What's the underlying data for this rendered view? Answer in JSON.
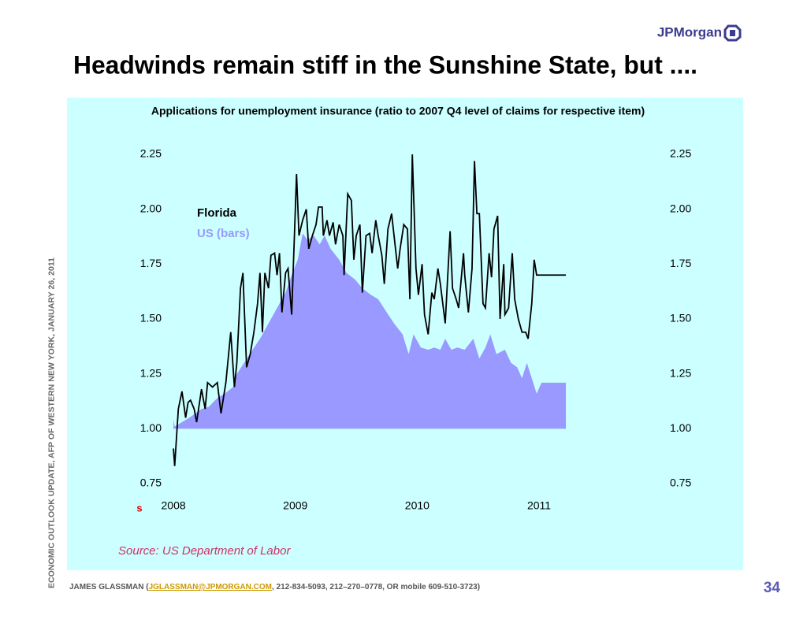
{
  "header": {
    "logo": "JPMorgan",
    "title": "Headwinds remain stiff in the Sunshine State, but ...."
  },
  "sidebar": "ECONOMIC OUTLOOK UPDATE, AFP OF WESTERN NEW YORK, JANUARY 26, 2011",
  "footer": {
    "before": "JAMES GLASSMAN (",
    "email": "JGLASSMAN@JPMORGAN.COM",
    "after": ", 212-834-5093, 212–270–0778, OR mobile 609-510-3723)"
  },
  "page_number": "34",
  "chart_data": {
    "type": "line",
    "title": "Applications for unemployment insurance (ratio to 2007 Q4 level of claims for respective item)",
    "annotation": "s",
    "source": "Source: US Department of Labor",
    "xlim": [
      2007.87,
      2011.75
    ],
    "xticks": [
      2008,
      2009,
      2010,
      2011
    ],
    "ylim": [
      0.75,
      2.25
    ],
    "yticks": [
      0.75,
      {
        "value": 1,
        "label": "1.00"
      },
      1.25,
      {
        "value": 1.5,
        "label": "1.50"
      },
      1.75,
      {
        "value": 2,
        "label": "2.00"
      },
      2.25
    ],
    "y2lim": [
      0.75,
      2.25
    ],
    "y2ticks": [
      0.75,
      {
        "value": 1,
        "label": "1.00"
      },
      1.25,
      {
        "value": 1.5,
        "label": "1.50"
      },
      1.75,
      {
        "value": 2,
        "label": "2.00"
      },
      2.25
    ],
    "series": [
      {
        "name": "Florida",
        "type": "line",
        "color": "#000000",
        "x": [
          2008.0,
          2008.01,
          2008.04,
          2008.07,
          2008.1,
          2008.12,
          2008.14,
          2008.17,
          2008.19,
          2008.23,
          2008.26,
          2008.28,
          2008.32,
          2008.36,
          2008.39,
          2008.43,
          2008.47,
          2008.5,
          2008.52,
          2008.55,
          2008.57,
          2008.6,
          2008.63,
          2008.66,
          2008.69,
          2008.71,
          2008.73,
          2008.75,
          2008.78,
          2008.8,
          2008.83,
          2008.85,
          2008.87,
          2008.89,
          2008.92,
          2008.94,
          2008.97,
          2009.01,
          2009.03,
          2009.06,
          2009.09,
          2009.11,
          2009.14,
          2009.17,
          2009.19,
          2009.22,
          2009.23,
          2009.26,
          2009.28,
          2009.31,
          2009.33,
          2009.36,
          2009.39,
          2009.4,
          2009.43,
          2009.46,
          2009.48,
          2009.5,
          2009.53,
          2009.55,
          2009.58,
          2009.61,
          2009.63,
          2009.66,
          2009.68,
          2009.71,
          2009.73,
          2009.76,
          2009.79,
          2009.81,
          2009.84,
          2009.86,
          2009.89,
          2009.92,
          2009.94,
          2009.96,
          2009.99,
          2010.01,
          2010.04,
          2010.06,
          2010.09,
          2010.12,
          2010.14,
          2010.17,
          2010.19,
          2010.23,
          2010.27,
          2010.29,
          2010.32,
          2010.34,
          2010.38,
          2010.39,
          2010.42,
          2010.45,
          2010.47,
          2010.49,
          2010.51,
          2010.54,
          2010.56,
          2010.59,
          2010.61,
          2010.63,
          2010.66,
          2010.68,
          2010.71,
          2010.72,
          2010.75,
          2010.78,
          2010.8,
          2010.83,
          2010.86,
          2010.89,
          2010.91,
          2010.94,
          2010.96,
          2010.98,
          2011.22
        ],
        "values": [
          0.91,
          0.83,
          1.09,
          1.17,
          1.05,
          1.12,
          1.13,
          1.09,
          1.03,
          1.18,
          1.09,
          1.21,
          1.19,
          1.21,
          1.07,
          1.21,
          1.44,
          1.19,
          1.3,
          1.64,
          1.71,
          1.28,
          1.34,
          1.44,
          1.57,
          1.71,
          1.44,
          1.71,
          1.64,
          1.79,
          1.8,
          1.7,
          1.8,
          1.53,
          1.71,
          1.73,
          1.52,
          2.16,
          1.88,
          1.95,
          2.0,
          1.82,
          1.88,
          1.93,
          2.01,
          2.01,
          1.88,
          1.95,
          1.88,
          1.94,
          1.84,
          1.93,
          1.88,
          1.7,
          2.07,
          2.04,
          1.77,
          1.88,
          1.93,
          1.62,
          1.88,
          1.89,
          1.8,
          1.95,
          1.88,
          1.79,
          1.66,
          1.91,
          1.98,
          1.88,
          1.73,
          1.82,
          1.93,
          1.91,
          1.59,
          2.25,
          1.73,
          1.61,
          1.75,
          1.52,
          1.43,
          1.62,
          1.59,
          1.73,
          1.66,
          1.48,
          1.9,
          1.64,
          1.59,
          1.55,
          1.8,
          1.7,
          1.53,
          1.73,
          2.22,
          1.98,
          1.98,
          1.57,
          1.55,
          1.8,
          1.69,
          1.91,
          1.97,
          1.5,
          1.75,
          1.52,
          1.55,
          1.8,
          1.59,
          1.5,
          1.44,
          1.44,
          1.41,
          1.57,
          1.77,
          1.7,
          1.7
        ]
      },
      {
        "name": "US (bars)",
        "type": "area",
        "color": "#9999ff",
        "base": 1,
        "x": [
          2008.0,
          2008.01,
          2008.13,
          2008.23,
          2008.29,
          2008.36,
          2008.42,
          2008.49,
          2008.52,
          2008.58,
          2008.65,
          2008.71,
          2008.78,
          2008.83,
          2008.87,
          2008.92,
          2008.97,
          2009.02,
          2009.06,
          2009.1,
          2009.15,
          2009.2,
          2009.24,
          2009.29,
          2009.36,
          2009.42,
          2009.49,
          2009.55,
          2009.62,
          2009.68,
          2009.75,
          2009.81,
          2009.88,
          2009.93,
          2009.97,
          2010.03,
          2010.09,
          2010.14,
          2010.19,
          2010.23,
          2010.28,
          2010.33,
          2010.39,
          2010.46,
          2010.51,
          2010.56,
          2010.6,
          2010.65,
          2010.72,
          2010.77,
          2010.82,
          2010.86,
          2010.9,
          2010.94,
          2010.98,
          2011.02,
          2011.22
        ],
        "values": [
          1.04,
          1.01,
          1.05,
          1.09,
          1.1,
          1.14,
          1.16,
          1.19,
          1.25,
          1.3,
          1.36,
          1.41,
          1.48,
          1.53,
          1.57,
          1.62,
          1.7,
          1.77,
          1.89,
          1.86,
          1.88,
          1.84,
          1.88,
          1.82,
          1.77,
          1.71,
          1.68,
          1.64,
          1.61,
          1.59,
          1.53,
          1.48,
          1.43,
          1.34,
          1.43,
          1.37,
          1.36,
          1.37,
          1.36,
          1.41,
          1.36,
          1.37,
          1.36,
          1.41,
          1.32,
          1.37,
          1.43,
          1.34,
          1.36,
          1.3,
          1.28,
          1.23,
          1.3,
          1.23,
          1.16,
          1.21,
          1.21
        ]
      }
    ]
  }
}
